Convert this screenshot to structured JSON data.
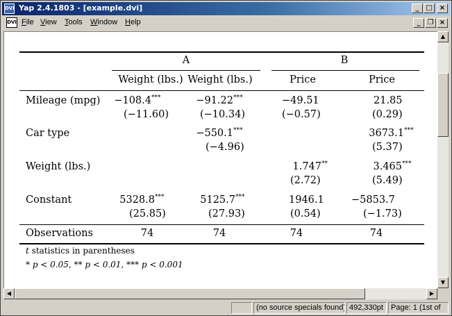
{
  "window": {
    "title": "Yap 2.4.1803 - [example.dvi]",
    "app_icon_label": "DVI",
    "minimize_glyph": "_",
    "maximize_glyph": "□",
    "close_glyph": "×",
    "restore_glyph": "❐"
  },
  "menu": {
    "items": [
      "File",
      "View",
      "Tools",
      "Window",
      "Help"
    ]
  },
  "table": {
    "group_headers": [
      "A",
      "B"
    ],
    "column_headers": [
      "Weight (lbs.)",
      "Weight (lbs.)",
      "Price",
      "Price"
    ],
    "rows": [
      {
        "label": "Mileage (mpg)",
        "coef": [
          "−108.4",
          "−91.22",
          "−49.51",
          "21.85"
        ],
        "stars": [
          "***",
          "***",
          "",
          ""
        ],
        "tstat": [
          "(−11.60)",
          "(−10.34)",
          "(−0.57)",
          "(0.29)"
        ]
      },
      {
        "label": "Car type",
        "coef": [
          "",
          "−550.1",
          "",
          "3673.1"
        ],
        "stars": [
          "",
          "***",
          "",
          "***"
        ],
        "tstat": [
          "",
          "(−4.96)",
          "",
          "(5.37)"
        ]
      },
      {
        "label": "Weight (lbs.)",
        "coef": [
          "",
          "",
          "1.747",
          "3.465"
        ],
        "stars": [
          "",
          "",
          "**",
          "***"
        ],
        "tstat": [
          "",
          "",
          "(2.72)",
          "(5.49)"
        ]
      },
      {
        "label": "Constant",
        "coef": [
          "5328.8",
          "5125.7",
          "1946.1",
          "−5853.7"
        ],
        "stars": [
          "***",
          "***",
          "",
          ""
        ],
        "tstat": [
          "(25.85)",
          "(27.93)",
          "(0.54)",
          "(−1.73)"
        ]
      }
    ],
    "observations_label": "Observations",
    "observations": [
      "74",
      "74",
      "74",
      "74"
    ],
    "note_t_var": "t",
    "note_t_text": "statistics in parentheses",
    "note_p": "* p < 0.05, ** p < 0.01, *** p < 0.001"
  },
  "status": {
    "pane1": "",
    "pane2": "(no source specials found)",
    "pane3": "492,330pt",
    "pane4": "Page: 1 (1st of"
  }
}
